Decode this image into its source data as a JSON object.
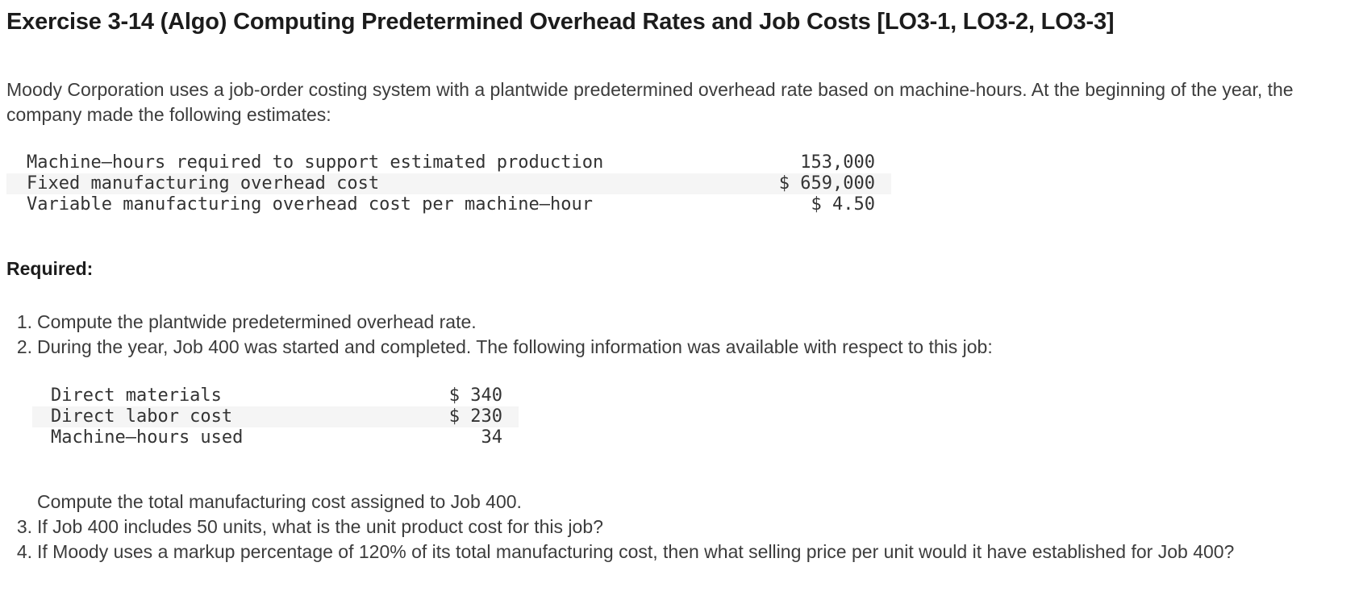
{
  "title": "Exercise 3-14 (Algo) Computing Predetermined Overhead Rates and Job Costs [LO3-1, LO3-2, LO3-3]",
  "intro": "Moody Corporation uses a job-order costing system with a plantwide predetermined overhead rate based on machine-hours. At the beginning of the year, the company made the following estimates:",
  "estimates_table": {
    "rows": [
      {
        "label": "Machine–hours required to support estimated production",
        "value": "153,000"
      },
      {
        "label": "Fixed manufacturing overhead cost",
        "value": "$ 659,000"
      },
      {
        "label": "Variable manufacturing overhead cost per machine–hour",
        "value": "$ 4.50"
      }
    ]
  },
  "required_label": "Required:",
  "requirements": [
    {
      "number": "1.",
      "text": "Compute the plantwide predetermined overhead rate."
    },
    {
      "number": "2.",
      "text": "During the year, Job 400 was started and completed. The following information was available with respect to this job:"
    },
    {
      "number": "3.",
      "text": "If Job 400 includes 50 units, what is the unit product cost for this job?"
    },
    {
      "number": "4.",
      "text": "If Moody uses a markup percentage of 120% of its total manufacturing cost, then what selling price per unit would it have established for Job 400?"
    }
  ],
  "job_table": {
    "rows": [
      {
        "label": "Direct materials",
        "value": "$ 340"
      },
      {
        "label": "Direct labor cost",
        "value": "$ 230"
      },
      {
        "label": "Machine–hours used",
        "value": "34"
      }
    ]
  },
  "continuation": "Compute the total manufacturing cost assigned to Job 400.",
  "colors": {
    "stripe": "#f5f5f5",
    "body_text": "#3c3c3c",
    "title_text": "#1c1c1c",
    "mono_text": "#333333",
    "background": "#ffffff"
  }
}
